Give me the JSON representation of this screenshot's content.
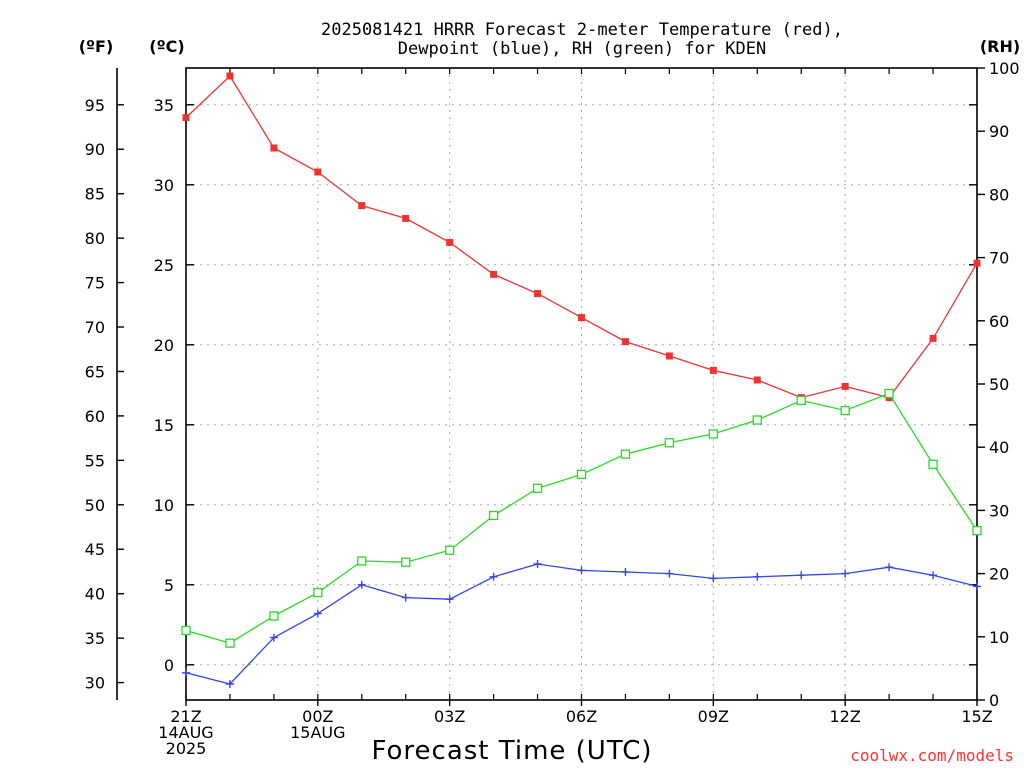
{
  "chart_data": {
    "type": "line",
    "title_line1": "2025081421 HRRR Forecast 2-meter Temperature (red),",
    "title_line2": "Dewpoint (blue), RH (green) for KDEN",
    "unit_f": "(ºF)",
    "unit_c": "(ºC)",
    "unit_rh": "(RH)",
    "xlabel": "Forecast Time (UTC)",
    "x_tick_labels": [
      {
        "hour": 0,
        "lines": [
          "21Z",
          "14AUG",
          "2025"
        ]
      },
      {
        "hour": 3,
        "lines": [
          "00Z",
          "15AUG"
        ]
      },
      {
        "hour": 6,
        "lines": [
          "03Z"
        ]
      },
      {
        "hour": 9,
        "lines": [
          "06Z"
        ]
      },
      {
        "hour": 12,
        "lines": [
          "09Z"
        ]
      },
      {
        "hour": 15,
        "lines": [
          "12Z"
        ]
      },
      {
        "hour": 18,
        "lines": [
          "15Z"
        ]
      }
    ],
    "x": [
      0,
      1,
      2,
      3,
      4,
      5,
      6,
      7,
      8,
      9,
      10,
      11,
      12,
      13,
      14,
      15,
      16,
      17,
      18
    ],
    "xlim": [
      0,
      18
    ],
    "ylim_c": [
      -2.2,
      37.3
    ],
    "ylim_rh": [
      0,
      100
    ],
    "y_ticks_c": [
      0,
      5,
      10,
      15,
      20,
      25,
      30,
      35
    ],
    "y_ticks_f": [
      30,
      35,
      40,
      45,
      50,
      55,
      60,
      65,
      70,
      75,
      80,
      85,
      90,
      95
    ],
    "y_ticks_rh": [
      0,
      10,
      20,
      30,
      40,
      50,
      60,
      70,
      80,
      90,
      100
    ],
    "grid": true,
    "series": [
      {
        "name": "Temperature",
        "axis": "C",
        "color": "#ee3333",
        "marker": "filled-square",
        "values": [
          34.2,
          36.8,
          32.3,
          30.8,
          28.7,
          27.9,
          26.4,
          24.4,
          23.2,
          21.7,
          20.2,
          19.3,
          18.4,
          17.8,
          16.7,
          17.4,
          16.7,
          20.4,
          25.1
        ]
      },
      {
        "name": "Dewpoint",
        "axis": "C",
        "color": "#3344ee",
        "marker": "plus",
        "values": [
          -0.5,
          -1.2,
          1.7,
          3.2,
          5.0,
          4.2,
          4.1,
          5.5,
          6.3,
          5.9,
          5.8,
          5.7,
          5.4,
          5.5,
          5.6,
          5.7,
          6.1,
          5.6,
          4.9
        ]
      },
      {
        "name": "RH",
        "axis": "RH",
        "color": "#22dd22",
        "marker": "open-square",
        "values": [
          11,
          9,
          13.3,
          17,
          22,
          21.8,
          23.7,
          29.2,
          33.5,
          35.7,
          38.9,
          40.7,
          42.1,
          44.3,
          47.4,
          45.8,
          48.5,
          37.3,
          26.8
        ]
      }
    ],
    "watermark": "coolwx.com/models"
  }
}
